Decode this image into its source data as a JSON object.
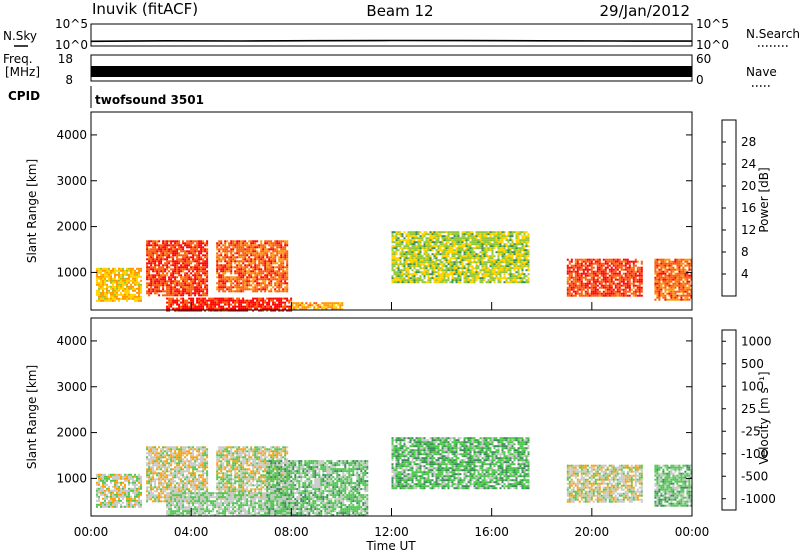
{
  "header": {
    "station": "Inuvik (fitACF)",
    "beam": "Beam 12",
    "date": "29/Jan/2012"
  },
  "top_panels": {
    "nsky_label": "N.Sky",
    "nsky_ticks": [
      "10^5",
      "10^0"
    ],
    "nsearch_label": "N.Search",
    "nsearch_ticks": [
      "10^5",
      "10^0"
    ],
    "freq_label": "Freq.",
    "freq_unit": "[MHz]",
    "freq_ticks": [
      "18",
      "8"
    ],
    "nave_label": "Nave",
    "nave_ticks": [
      "60",
      "0"
    ],
    "cpid_label": "CPID",
    "cpid_value": "twofsound 3501"
  },
  "x_axis": {
    "title": "Time UT",
    "ticks": [
      "00:00",
      "04:00",
      "08:00",
      "12:00",
      "16:00",
      "20:00",
      "00:00"
    ]
  },
  "power_panel": {
    "ylabel": "Slant Range [km]",
    "yticks": [
      "1000",
      "2000",
      "3000",
      "4000"
    ],
    "colorbar_label": "Power [dB]",
    "colorbar_ticks": [
      "28",
      "24",
      "20",
      "16",
      "12",
      "8",
      "4"
    ],
    "colors": [
      "#ff0000",
      "#ff5a00",
      "#ff9600",
      "#ffd200",
      "#8fc83c",
      "#3c8c5a",
      "#1e4ba0",
      "#0000ff"
    ]
  },
  "velocity_panel": {
    "ylabel": "Slant Range [km]",
    "yticks": [
      "1000",
      "2000",
      "3000",
      "4000"
    ],
    "colorbar_label": "Velocity [m s⁻¹]",
    "colorbar_ticks": [
      "1000",
      "500",
      "100",
      "25",
      "-25",
      "-100",
      "-500",
      "-1000"
    ],
    "colors": [
      "#1e3c96",
      "#2860b4",
      "#3c8c5a",
      "#50c850",
      "#c8c8c8",
      "#ffa000",
      "#ff6400",
      "#ff0000"
    ]
  },
  "chart_data": [
    {
      "type": "line",
      "title": "N.Sky",
      "x_range": [
        0,
        24
      ],
      "y_scale": "log",
      "ylim": [
        1,
        100000
      ],
      "x": [
        0,
        3,
        6,
        9,
        12,
        15,
        18,
        21,
        24
      ],
      "values": [
        12,
        15,
        14,
        16,
        18,
        17,
        15,
        14,
        13
      ]
    },
    {
      "type": "heatmap",
      "title": "Power [dB]",
      "x_range": [
        0,
        24
      ],
      "ylim": [
        180,
        4500
      ],
      "color_range": [
        0,
        30
      ],
      "regions": [
        {
          "t_start": 0.2,
          "t_end": 2.0,
          "r_min": 400,
          "r_max": 1100,
          "value": 18
        },
        {
          "t_start": 2.2,
          "t_end": 4.6,
          "r_min": 500,
          "r_max": 1700,
          "value": 26
        },
        {
          "t_start": 5.0,
          "t_end": 7.8,
          "r_min": 600,
          "r_max": 1700,
          "value": 24
        },
        {
          "t_start": 3.0,
          "t_end": 8.0,
          "r_min": 180,
          "r_max": 450,
          "value": 28
        },
        {
          "t_start": 8.0,
          "t_end": 10.0,
          "r_min": 180,
          "r_max": 350,
          "value": 20
        },
        {
          "t_start": 12.0,
          "t_end": 17.5,
          "r_min": 800,
          "r_max": 1900,
          "value": 14
        },
        {
          "t_start": 19.0,
          "t_end": 22.0,
          "r_min": 500,
          "r_max": 1300,
          "value": 26
        },
        {
          "t_start": 22.5,
          "t_end": 24.0,
          "r_min": 400,
          "r_max": 1300,
          "value": 24
        }
      ]
    },
    {
      "type": "heatmap",
      "title": "Velocity [m s⁻¹]",
      "x_range": [
        0,
        24
      ],
      "ylim": [
        180,
        4500
      ],
      "color_range": [
        -1000,
        1000
      ],
      "regions": [
        {
          "t_start": 0.2,
          "t_end": 2.0,
          "r_min": 400,
          "r_max": 1100,
          "value": -120
        },
        {
          "t_start": 2.2,
          "t_end": 4.6,
          "r_min": 500,
          "r_max": 1700,
          "value": -150
        },
        {
          "t_start": 5.0,
          "t_end": 7.8,
          "r_min": 600,
          "r_max": 1700,
          "value": -120
        },
        {
          "t_start": 3.0,
          "t_end": 8.0,
          "r_min": 180,
          "r_max": 700,
          "value": 0
        },
        {
          "t_start": 7.0,
          "t_end": 11.0,
          "r_min": 180,
          "r_max": 1400,
          "value": 80
        },
        {
          "t_start": 12.0,
          "t_end": 17.5,
          "r_min": 800,
          "r_max": 1900,
          "value": 150
        },
        {
          "t_start": 19.0,
          "t_end": 22.0,
          "r_min": 500,
          "r_max": 1300,
          "value": -120
        },
        {
          "t_start": 22.5,
          "t_end": 24.0,
          "r_min": 400,
          "r_max": 1300,
          "value": 60
        }
      ]
    }
  ]
}
